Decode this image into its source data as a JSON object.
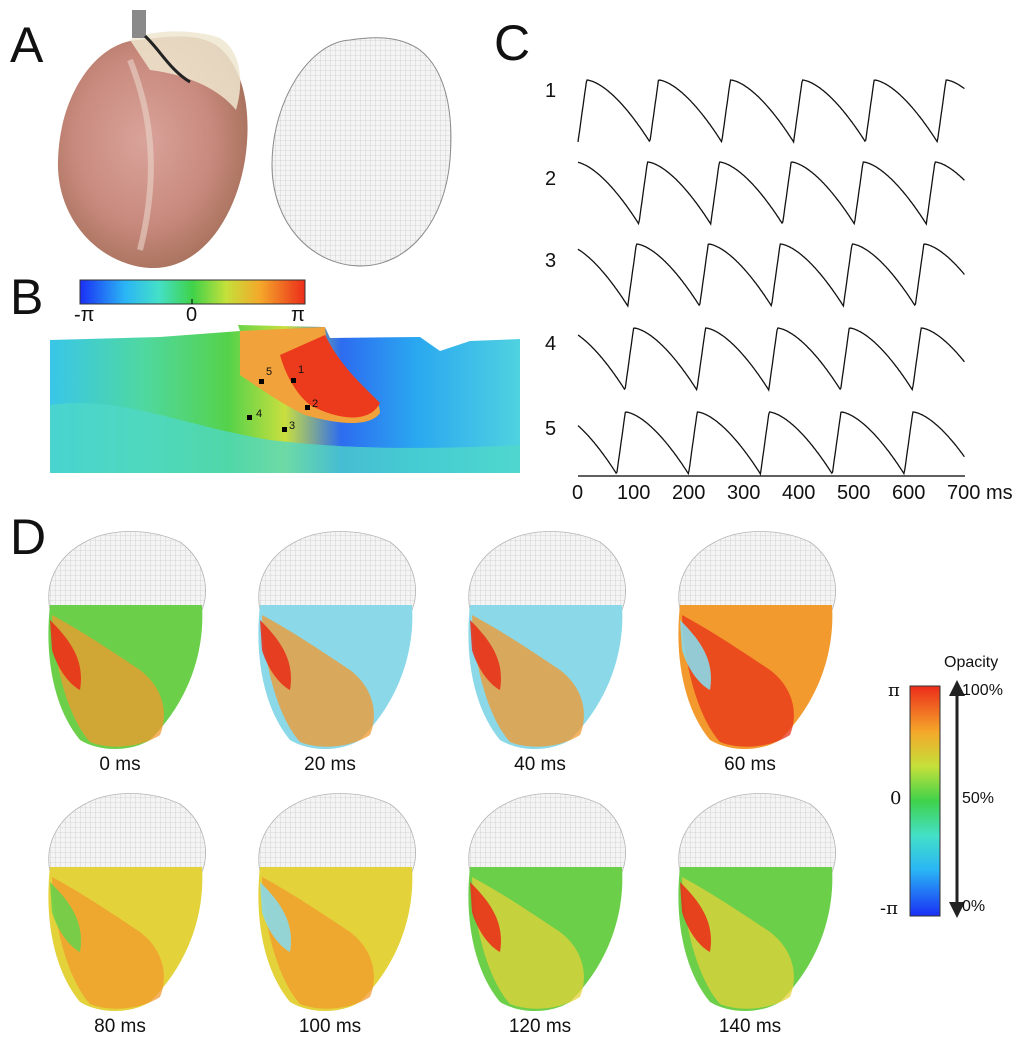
{
  "panels": {
    "a": "A",
    "b": "B",
    "c": "C",
    "d": "D"
  },
  "panel_b": {
    "colorbar_min": "-π",
    "colorbar_mid": "0",
    "colorbar_max": "π",
    "sites": [
      "1",
      "2",
      "3",
      "4",
      "5"
    ]
  },
  "panel_c": {
    "trace_labels": [
      "1",
      "2",
      "3",
      "4",
      "5"
    ],
    "x_ticks": [
      "0",
      "100",
      "200",
      "300",
      "400",
      "500",
      "600",
      "700"
    ],
    "x_unit": "ms",
    "chart_data": {
      "type": "line",
      "x_range": [
        0,
        700
      ],
      "x_unit": "ms",
      "series": [
        {
          "name": "1",
          "cycle_ms": 130,
          "phase_ms": 0
        },
        {
          "name": "2",
          "cycle_ms": 130,
          "phase_ms": 20
        },
        {
          "name": "3",
          "cycle_ms": 130,
          "phase_ms": 40
        },
        {
          "name": "4",
          "cycle_ms": 130,
          "phase_ms": 45
        },
        {
          "name": "5",
          "cycle_ms": 130,
          "phase_ms": 60
        }
      ]
    }
  },
  "panel_d": {
    "frames": [
      "0 ms",
      "20 ms",
      "40 ms",
      "60 ms",
      "80 ms",
      "100 ms",
      "120 ms",
      "140 ms"
    ],
    "colorbar": {
      "title": "Opacity",
      "phase_max": "π",
      "phase_mid": "0",
      "phase_min": "-π",
      "opacity_max": "100%",
      "opacity_mid": "50%",
      "opacity_min": "0%"
    }
  },
  "colors": {
    "phase_red": "#e8321a",
    "phase_orange": "#f29a2e",
    "phase_yellow": "#e3d23a",
    "phase_green": "#6ccf4a",
    "phase_cyan": "#8ad8e8",
    "phase_blue": "#1a3ff0",
    "mesh_gray": "#d9d9d9"
  }
}
